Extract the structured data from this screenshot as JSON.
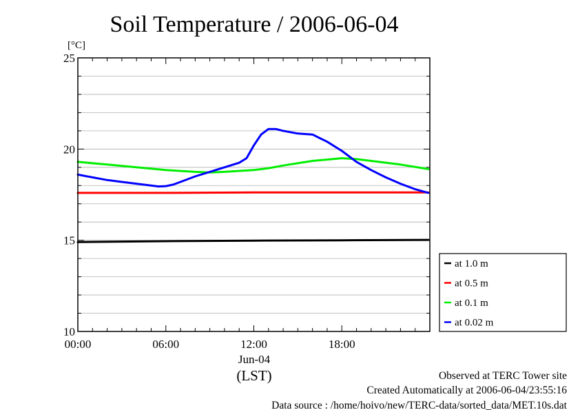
{
  "chart_data": {
    "type": "line",
    "title": "Soil Temperature / 2006-06-04",
    "ylabel": "[°C]",
    "xlabel": "(LST)",
    "date_label": "Jun-04",
    "ylim": [
      10,
      25
    ],
    "xlim": [
      0,
      24
    ],
    "x_unit": "hours",
    "y_ticks": [
      10,
      15,
      20,
      25
    ],
    "x_ticks": [
      {
        "value": 0,
        "label": "00:00"
      },
      {
        "value": 6,
        "label": "06:00"
      },
      {
        "value": 12,
        "label": "12:00"
      },
      {
        "value": 18,
        "label": "18:00"
      }
    ],
    "grid": true,
    "legend_placement": "right",
    "series": [
      {
        "name": "at 1.0 m",
        "color": "#000000",
        "x": [
          0,
          6,
          12,
          18,
          23.9
        ],
        "y": [
          14.9,
          14.95,
          14.98,
          15.0,
          15.02
        ]
      },
      {
        "name": "at 0.5 m",
        "color": "#ff0000",
        "x": [
          0,
          6,
          12,
          18,
          23.9
        ],
        "y": [
          17.6,
          17.6,
          17.62,
          17.62,
          17.62
        ]
      },
      {
        "name": "at 0.1 m",
        "color": "#00ee00",
        "x": [
          0,
          2,
          4,
          6,
          8,
          9,
          10,
          12,
          13,
          14,
          16,
          18,
          19,
          20,
          22,
          23.9
        ],
        "y": [
          19.3,
          19.15,
          19.0,
          18.85,
          18.75,
          18.72,
          18.75,
          18.85,
          18.95,
          19.1,
          19.35,
          19.5,
          19.45,
          19.35,
          19.15,
          18.9
        ]
      },
      {
        "name": "at 0.02 m",
        "color": "#0000ff",
        "x": [
          0,
          1,
          2,
          3,
          4,
          5,
          5.5,
          6,
          6.5,
          7,
          8,
          9,
          10,
          11,
          11.5,
          12,
          12.5,
          13,
          13.5,
          14,
          15,
          16,
          16.5,
          17,
          18,
          19,
          20,
          21,
          22,
          23,
          23.9
        ],
        "y": [
          18.6,
          18.45,
          18.3,
          18.2,
          18.1,
          18.0,
          17.95,
          17.97,
          18.05,
          18.2,
          18.5,
          18.75,
          19.0,
          19.25,
          19.5,
          20.2,
          20.8,
          21.1,
          21.1,
          21.0,
          20.85,
          20.8,
          20.6,
          20.4,
          19.9,
          19.3,
          18.85,
          18.45,
          18.1,
          17.8,
          17.6
        ]
      }
    ]
  },
  "footer": {
    "line1": "Observed at TERC Tower site",
    "line2": "Created Automatically at 2006-06-04/23:55:16",
    "line3": "Data source : /home/hoivo/new/TERC-data/sorted_data/MET.10s.dat"
  }
}
